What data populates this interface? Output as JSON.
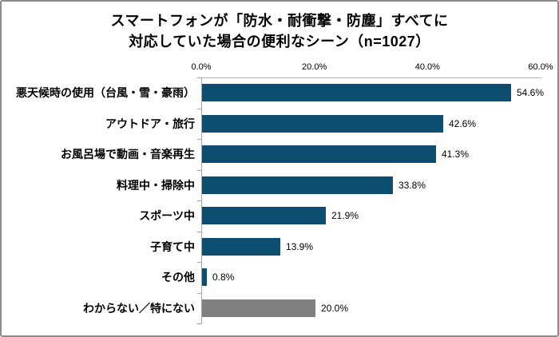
{
  "frame": {
    "background": "#ffffff",
    "border_color": "#8c8c8c"
  },
  "title": {
    "line1": "スマートフォンが「防水・耐衝撃・防塵」すべてに",
    "line2": "対応していた場合の便利なシーン（n=1027）"
  },
  "chart_data": {
    "type": "bar",
    "orientation": "horizontal",
    "title": "スマートフォンが「防水・耐衝撃・防塵」すべてに対応していた場合の便利なシーン（n=1027）",
    "sample_size": "n=1027",
    "categories": [
      "悪天候時の使用（台風・雪・豪雨）",
      "アウトドア・旅行",
      "お風呂場で動画・音楽再生",
      "料理中・掃除中",
      "スポーツ中",
      "子育て中",
      "その他",
      "わからない／特にない"
    ],
    "values": [
      54.6,
      42.6,
      41.3,
      33.8,
      21.9,
      13.9,
      0.8,
      20.0
    ],
    "value_labels": [
      "54.6%",
      "42.6%",
      "41.3%",
      "33.8%",
      "21.9%",
      "13.9%",
      "0.8%",
      "20.0%"
    ],
    "bar_colors": [
      "#0d4d6f",
      "#0d4d6f",
      "#0d4d6f",
      "#0d4d6f",
      "#0d4d6f",
      "#0d4d6f",
      "#0d4d6f",
      "#808080"
    ],
    "xlim": [
      0,
      60
    ],
    "x_ticks": [
      0,
      20,
      40,
      60
    ],
    "x_tick_labels": [
      "0.0%",
      "20.0%",
      "40.0%",
      "60.0%"
    ],
    "axis_color": "#a6a6a6",
    "grid": false,
    "legend": "none",
    "value_axis_position": "top"
  }
}
